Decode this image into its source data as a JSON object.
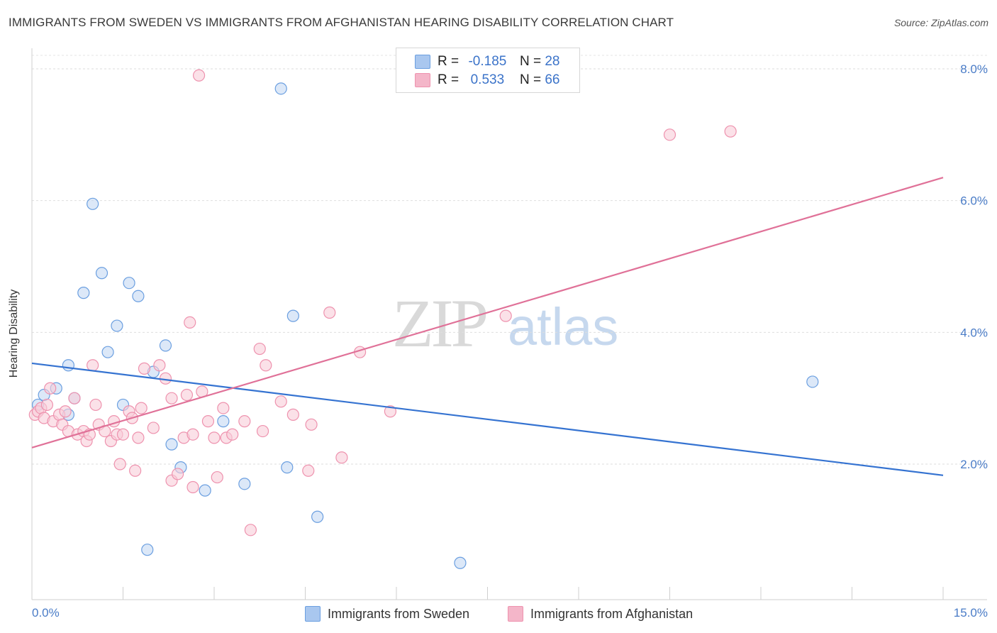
{
  "title": "IMMIGRANTS FROM SWEDEN VS IMMIGRANTS FROM AFGHANISTAN HEARING DISABILITY CORRELATION CHART",
  "source": "Source: ZipAtlas.com",
  "watermark": {
    "zip": "ZIP",
    "atlas": "atlas"
  },
  "legend_top": {
    "rows": [
      {
        "r_label": "R =",
        "r_value": "-0.185",
        "n_label": "N =",
        "n_value": "28",
        "color": "#a9c7ef"
      },
      {
        "r_label": "R =",
        "r_value": "0.533",
        "n_label": "N =",
        "n_value": "66",
        "color": "#f4b6c9"
      }
    ]
  },
  "chart_data": {
    "type": "scatter",
    "title": "IMMIGRANTS FROM SWEDEN VS IMMIGRANTS FROM AFGHANISTAN HEARING DISABILITY CORRELATION CHART",
    "xlabel": "",
    "ylabel": "Hearing Disability",
    "xlim": [
      0,
      15
    ],
    "ylim": [
      0,
      8.3
    ],
    "x_tick_labels": [
      "0.0%",
      "15.0%"
    ],
    "y_ticks": [
      2,
      4,
      6,
      8
    ],
    "y_tick_labels": [
      "2.0%",
      "4.0%",
      "6.0%",
      "8.0%"
    ],
    "grid": true,
    "legend": "bottom",
    "series": [
      {
        "name": "Immigrants from Sweden",
        "color": "#6b9fe0",
        "fill": "#c5d9f3",
        "line_color": "#3573d1",
        "trend": {
          "x": [
            0,
            15
          ],
          "y": [
            3.53,
            1.83
          ]
        },
        "points": [
          [
            0.1,
            2.9
          ],
          [
            0.2,
            3.05
          ],
          [
            0.4,
            3.15
          ],
          [
            0.6,
            3.5
          ],
          [
            0.7,
            3.0
          ],
          [
            0.6,
            2.75
          ],
          [
            0.85,
            4.6
          ],
          [
            1.0,
            5.95
          ],
          [
            1.15,
            4.9
          ],
          [
            1.25,
            3.7
          ],
          [
            1.4,
            4.1
          ],
          [
            1.5,
            2.9
          ],
          [
            1.6,
            4.75
          ],
          [
            1.75,
            4.55
          ],
          [
            2.0,
            3.4
          ],
          [
            2.2,
            3.8
          ],
          [
            2.3,
            2.3
          ],
          [
            2.45,
            1.95
          ],
          [
            2.85,
            1.6
          ],
          [
            3.15,
            2.65
          ],
          [
            3.5,
            1.7
          ],
          [
            4.1,
            7.7
          ],
          [
            4.2,
            1.95
          ],
          [
            4.3,
            4.25
          ],
          [
            4.7,
            1.2
          ],
          [
            7.05,
            0.5
          ],
          [
            12.85,
            3.25
          ],
          [
            1.9,
            0.7
          ]
        ]
      },
      {
        "name": "Immigrants from Afghanistan",
        "color": "#ee92ae",
        "fill": "#f8cdd9",
        "line_color": "#e07198",
        "trend": {
          "x": [
            0,
            15
          ],
          "y": [
            2.25,
            6.35
          ]
        },
        "points": [
          [
            0.05,
            2.75
          ],
          [
            0.1,
            2.8
          ],
          [
            0.15,
            2.85
          ],
          [
            0.2,
            2.7
          ],
          [
            0.3,
            3.15
          ],
          [
            0.35,
            2.65
          ],
          [
            0.45,
            2.75
          ],
          [
            0.5,
            2.6
          ],
          [
            0.55,
            2.8
          ],
          [
            0.6,
            2.5
          ],
          [
            0.7,
            3.0
          ],
          [
            0.75,
            2.45
          ],
          [
            0.85,
            2.5
          ],
          [
            0.9,
            2.35
          ],
          [
            0.95,
            2.45
          ],
          [
            1.0,
            3.5
          ],
          [
            1.1,
            2.6
          ],
          [
            1.2,
            2.5
          ],
          [
            1.3,
            2.35
          ],
          [
            1.35,
            2.65
          ],
          [
            1.4,
            2.45
          ],
          [
            1.45,
            2.0
          ],
          [
            1.5,
            2.45
          ],
          [
            1.6,
            2.8
          ],
          [
            1.65,
            2.7
          ],
          [
            1.7,
            1.9
          ],
          [
            1.75,
            2.4
          ],
          [
            1.8,
            2.85
          ],
          [
            1.85,
            3.45
          ],
          [
            2.0,
            2.55
          ],
          [
            2.1,
            3.5
          ],
          [
            2.2,
            3.3
          ],
          [
            2.3,
            1.75
          ],
          [
            2.3,
            3.0
          ],
          [
            2.4,
            1.85
          ],
          [
            2.5,
            2.4
          ],
          [
            2.55,
            3.05
          ],
          [
            2.6,
            4.15
          ],
          [
            2.65,
            1.65
          ],
          [
            2.8,
            3.1
          ],
          [
            2.9,
            2.65
          ],
          [
            3.0,
            2.4
          ],
          [
            3.05,
            1.8
          ],
          [
            3.15,
            2.85
          ],
          [
            3.2,
            2.4
          ],
          [
            3.3,
            2.45
          ],
          [
            3.5,
            2.65
          ],
          [
            3.6,
            1.0
          ],
          [
            3.75,
            3.75
          ],
          [
            3.8,
            2.5
          ],
          [
            3.85,
            3.5
          ],
          [
            4.1,
            2.95
          ],
          [
            4.3,
            2.75
          ],
          [
            4.55,
            1.9
          ],
          [
            4.6,
            2.6
          ],
          [
            4.9,
            4.3
          ],
          [
            5.1,
            2.1
          ],
          [
            5.4,
            3.7
          ],
          [
            5.9,
            2.8
          ],
          [
            7.8,
            4.25
          ],
          [
            2.75,
            7.9
          ],
          [
            10.5,
            7.0
          ],
          [
            11.5,
            7.05
          ],
          [
            1.05,
            2.9
          ],
          [
            0.25,
            2.9
          ],
          [
            2.65,
            2.45
          ]
        ]
      }
    ]
  }
}
